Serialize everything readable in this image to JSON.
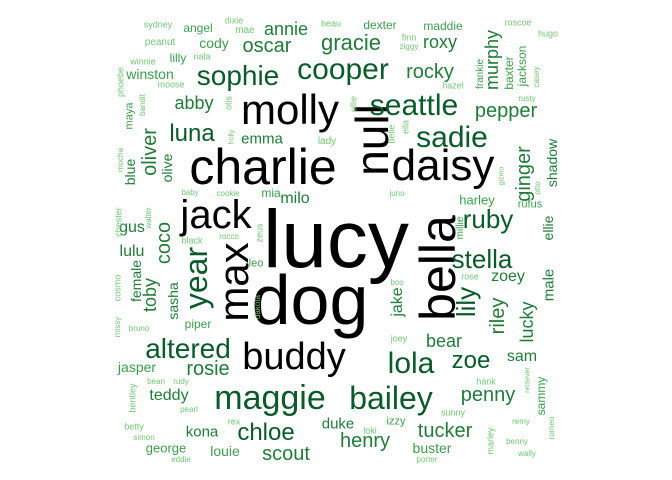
{
  "colors": {
    "black": "#000000",
    "dark_green": "#0b5a2a",
    "green": "#237a3a",
    "mid_green": "#3f9a4f",
    "light_green": "#74c476"
  },
  "words": [
    {
      "text": "lucy",
      "weight": 1.0,
      "tone": "black"
    },
    {
      "text": "dog",
      "weight": 1.0,
      "tone": "black"
    },
    {
      "text": "bella",
      "weight": 0.8,
      "tone": "black"
    },
    {
      "text": "charlie",
      "weight": 0.66,
      "tone": "black"
    },
    {
      "text": "null",
      "weight": 0.62,
      "tone": "black"
    },
    {
      "text": "daisy",
      "weight": 0.6,
      "tone": "black"
    },
    {
      "text": "molly",
      "weight": 0.58,
      "tone": "black"
    },
    {
      "text": "max",
      "weight": 0.58,
      "tone": "black"
    },
    {
      "text": "jack",
      "weight": 0.52,
      "tone": "black"
    },
    {
      "text": "buddy",
      "weight": 0.52,
      "tone": "black"
    },
    {
      "text": "year",
      "weight": 0.46,
      "tone": "dark_green"
    },
    {
      "text": "maggie",
      "weight": 0.44,
      "tone": "dark_green"
    },
    {
      "text": "bailey",
      "weight": 0.42,
      "tone": "dark_green"
    },
    {
      "text": "cooper",
      "weight": 0.4,
      "tone": "dark_green"
    },
    {
      "text": "seattle",
      "weight": 0.4,
      "tone": "dark_green"
    },
    {
      "text": "sadie",
      "weight": 0.4,
      "tone": "dark_green"
    },
    {
      "text": "lola",
      "weight": 0.4,
      "tone": "dark_green"
    },
    {
      "text": "sophie",
      "weight": 0.36,
      "tone": "dark_green"
    },
    {
      "text": "altered",
      "weight": 0.36,
      "tone": "dark_green"
    },
    {
      "text": "ruby",
      "weight": 0.34,
      "tone": "dark_green"
    },
    {
      "text": "stella",
      "weight": 0.34,
      "tone": "dark_green"
    },
    {
      "text": "lily",
      "weight": 0.34,
      "tone": "dark_green"
    },
    {
      "text": "zoe",
      "weight": 0.32,
      "tone": "dark_green"
    },
    {
      "text": "luna",
      "weight": 0.32,
      "tone": "dark_green"
    },
    {
      "text": "chloe",
      "weight": 0.3,
      "tone": "dark_green"
    },
    {
      "text": "gracie",
      "weight": 0.28,
      "tone": "green"
    },
    {
      "text": "oscar",
      "weight": 0.26,
      "tone": "green"
    },
    {
      "text": "rocky",
      "weight": 0.26,
      "tone": "green"
    },
    {
      "text": "oliver",
      "weight": 0.26,
      "tone": "green"
    },
    {
      "text": "pepper",
      "weight": 0.24,
      "tone": "green"
    },
    {
      "text": "ginger",
      "weight": 0.24,
      "tone": "green"
    },
    {
      "text": "coco",
      "weight": 0.24,
      "tone": "green"
    },
    {
      "text": "riley",
      "weight": 0.24,
      "tone": "green"
    },
    {
      "text": "rosie",
      "weight": 0.24,
      "tone": "green"
    },
    {
      "text": "henry",
      "weight": 0.24,
      "tone": "green"
    },
    {
      "text": "penny",
      "weight": 0.24,
      "tone": "green"
    },
    {
      "text": "tucker",
      "weight": 0.24,
      "tone": "green"
    },
    {
      "text": "scout",
      "weight": 0.24,
      "tone": "green"
    },
    {
      "text": "abby",
      "weight": 0.22,
      "tone": "green"
    },
    {
      "text": "bear",
      "weight": 0.22,
      "tone": "green"
    },
    {
      "text": "toby",
      "weight": 0.22,
      "tone": "green"
    },
    {
      "text": "jake",
      "weight": 0.22,
      "tone": "green"
    },
    {
      "text": "roxy",
      "weight": 0.2,
      "tone": "green"
    },
    {
      "text": "murphy",
      "weight": 0.2,
      "tone": "green"
    },
    {
      "text": "annie",
      "weight": 0.2,
      "tone": "green"
    },
    {
      "text": "lucky",
      "weight": 0.2,
      "tone": "green"
    },
    {
      "text": "milo",
      "weight": 0.18,
      "tone": "green"
    },
    {
      "text": "teddy",
      "weight": 0.18,
      "tone": "green"
    },
    {
      "text": "sam",
      "weight": 0.18,
      "tone": "green"
    },
    {
      "text": "zoey",
      "weight": 0.18,
      "tone": "green"
    },
    {
      "text": "emma",
      "weight": 0.18,
      "tone": "green"
    },
    {
      "text": "lulu",
      "weight": 0.18,
      "tone": "green"
    },
    {
      "text": "gus",
      "weight": 0.18,
      "tone": "green"
    },
    {
      "text": "sasha",
      "weight": 0.18,
      "tone": "green"
    },
    {
      "text": "kona",
      "weight": 0.16,
      "tone": "green"
    },
    {
      "text": "duke",
      "weight": 0.16,
      "tone": "green"
    },
    {
      "text": "shadow",
      "weight": 0.16,
      "tone": "green"
    },
    {
      "text": "ellie",
      "weight": 0.16,
      "tone": "green"
    },
    {
      "text": "male",
      "weight": 0.16,
      "tone": "green"
    },
    {
      "text": "olive",
      "weight": 0.16,
      "tone": "green"
    },
    {
      "text": "female",
      "weight": 0.16,
      "tone": "green"
    },
    {
      "text": "blue",
      "weight": 0.16,
      "tone": "green"
    },
    {
      "text": "cody",
      "weight": 0.14,
      "tone": "mid_green"
    },
    {
      "text": "winston",
      "weight": 0.14,
      "tone": "mid_green"
    },
    {
      "text": "jasper",
      "weight": 0.14,
      "tone": "mid_green"
    },
    {
      "text": "louie",
      "weight": 0.14,
      "tone": "mid_green"
    },
    {
      "text": "buster",
      "weight": 0.14,
      "tone": "mid_green"
    },
    {
      "text": "harley",
      "weight": 0.14,
      "tone": "mid_green"
    },
    {
      "text": "george",
      "weight": 0.12,
      "tone": "mid_green"
    },
    {
      "text": "mia",
      "weight": 0.12,
      "tone": "mid_green"
    },
    {
      "text": "jackson",
      "weight": 0.12,
      "tone": "mid_green"
    },
    {
      "text": "baxter",
      "weight": 0.12,
      "tone": "mid_green"
    },
    {
      "text": "sammy",
      "weight": 0.12,
      "tone": "mid_green"
    },
    {
      "text": "piper",
      "weight": 0.12,
      "tone": "mid_green"
    },
    {
      "text": "rufus",
      "weight": 0.12,
      "tone": "mid_green"
    },
    {
      "text": "maddie",
      "weight": 0.12,
      "tone": "mid_green"
    },
    {
      "text": "dexter",
      "weight": 0.12,
      "tone": "mid_green"
    },
    {
      "text": "angel",
      "weight": 0.12,
      "tone": "mid_green"
    },
    {
      "text": "leo",
      "weight": 0.12,
      "tone": "mid_green"
    },
    {
      "text": "maya",
      "weight": 0.1,
      "tone": "mid_green"
    },
    {
      "text": "lilly",
      "weight": 0.1,
      "tone": "mid_green"
    },
    {
      "text": "frankie",
      "weight": 0.1,
      "tone": "mid_green"
    },
    {
      "text": "izzy",
      "weight": 0.1,
      "tone": "mid_green"
    },
    {
      "text": "millie",
      "weight": 0.1,
      "tone": "mid_green"
    },
    {
      "text": "lady",
      "weight": 0.09,
      "tone": "light_green"
    },
    {
      "text": "peanut",
      "weight": 0.09,
      "tone": "light_green"
    },
    {
      "text": "sydney",
      "weight": 0.08,
      "tone": "light_green"
    },
    {
      "text": "dixie",
      "weight": 0.08,
      "tone": "light_green"
    },
    {
      "text": "mae",
      "weight": 0.08,
      "tone": "light_green"
    },
    {
      "text": "beau",
      "weight": 0.08,
      "tone": "light_green"
    },
    {
      "text": "roscoe",
      "weight": 0.08,
      "tone": "light_green"
    },
    {
      "text": "hugo",
      "weight": 0.08,
      "tone": "light_green"
    },
    {
      "text": "finn",
      "weight": 0.08,
      "tone": "light_green"
    },
    {
      "text": "ziggy",
      "weight": 0.08,
      "tone": "light_green"
    },
    {
      "text": "nala",
      "weight": 0.08,
      "tone": "light_green"
    },
    {
      "text": "winnie",
      "weight": 0.08,
      "tone": "light_green"
    },
    {
      "text": "moose",
      "weight": 0.08,
      "tone": "light_green"
    },
    {
      "text": "casey",
      "weight": 0.08,
      "tone": "light_green"
    },
    {
      "text": "phoebe",
      "weight": 0.08,
      "tone": "light_green"
    },
    {
      "text": "bandit",
      "weight": 0.08,
      "tone": "light_green"
    },
    {
      "text": "hazel",
      "weight": 0.08,
      "tone": "light_green"
    },
    {
      "text": "rusty",
      "weight": 0.08,
      "tone": "light_green"
    },
    {
      "text": "otis",
      "weight": 0.08,
      "tone": "light_green"
    },
    {
      "text": "ollie",
      "weight": 0.08,
      "tone": "light_green"
    },
    {
      "text": "holly",
      "weight": 0.07,
      "tone": "light_green"
    },
    {
      "text": "belle",
      "weight": 0.08,
      "tone": "light_green"
    },
    {
      "text": "ella",
      "weight": 0.08,
      "tone": "light_green"
    },
    {
      "text": "mocha",
      "weight": 0.08,
      "tone": "light_green"
    },
    {
      "text": "gizmo",
      "weight": 0.07,
      "tone": "light_green"
    },
    {
      "text": "otto",
      "weight": 0.07,
      "tone": "light_green"
    },
    {
      "text": "baby",
      "weight": 0.07,
      "tone": "light_green"
    },
    {
      "text": "cookie",
      "weight": 0.07,
      "tone": "light_green"
    },
    {
      "text": "juno",
      "weight": 0.07,
      "tone": "light_green"
    },
    {
      "text": "chester",
      "weight": 0.08,
      "tone": "light_green"
    },
    {
      "text": "walter",
      "weight": 0.07,
      "tone": "light_green"
    },
    {
      "text": "zeus",
      "weight": 0.08,
      "tone": "light_green"
    },
    {
      "text": "black",
      "weight": 0.08,
      "tone": "light_green"
    },
    {
      "text": "rocco",
      "weight": 0.07,
      "tone": "light_green"
    },
    {
      "text": "cosmo",
      "weight": 0.08,
      "tone": "light_green"
    },
    {
      "text": "boo",
      "weight": 0.07,
      "tone": "light_green"
    },
    {
      "text": "rose",
      "weight": 0.08,
      "tone": "light_green"
    },
    {
      "text": "dakota",
      "weight": 0.07,
      "tone": "light_green"
    },
    {
      "text": "missy",
      "weight": 0.07,
      "tone": "light_green"
    },
    {
      "text": "bruno",
      "weight": 0.07,
      "tone": "light_green"
    },
    {
      "text": "joey",
      "weight": 0.08,
      "tone": "light_green"
    },
    {
      "text": "bean",
      "weight": 0.07,
      "tone": "light_green"
    },
    {
      "text": "rudy",
      "weight": 0.07,
      "tone": "light_green"
    },
    {
      "text": "hank",
      "weight": 0.08,
      "tone": "light_green"
    },
    {
      "text": "retriever",
      "weight": 0.07,
      "tone": "light_green"
    },
    {
      "text": "bentley",
      "weight": 0.08,
      "tone": "light_green"
    },
    {
      "text": "pearl",
      "weight": 0.07,
      "tone": "light_green"
    },
    {
      "text": "sunny",
      "weight": 0.08,
      "tone": "light_green"
    },
    {
      "text": "betty",
      "weight": 0.08,
      "tone": "light_green"
    },
    {
      "text": "rex",
      "weight": 0.08,
      "tone": "light_green"
    },
    {
      "text": "loki",
      "weight": 0.08,
      "tone": "light_green"
    },
    {
      "text": "remy",
      "weight": 0.07,
      "tone": "light_green"
    },
    {
      "text": "romeo",
      "weight": 0.07,
      "tone": "light_green"
    },
    {
      "text": "simon",
      "weight": 0.07,
      "tone": "light_green"
    },
    {
      "text": "marley",
      "weight": 0.08,
      "tone": "light_green"
    },
    {
      "text": "benny",
      "weight": 0.07,
      "tone": "light_green"
    },
    {
      "text": "wally",
      "weight": 0.07,
      "tone": "light_green"
    },
    {
      "text": "eddie",
      "weight": 0.07,
      "tone": "light_green"
    },
    {
      "text": "porter",
      "weight": 0.07,
      "tone": "light_green"
    }
  ]
}
